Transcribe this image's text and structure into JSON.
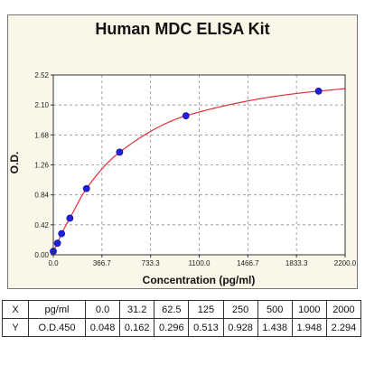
{
  "chart_data": {
    "type": "scatter",
    "title": "Human MDC ELISA Kit",
    "xlabel": "Concentration (pg/ml)",
    "ylabel": "O.D.",
    "xlim": [
      0,
      2200
    ],
    "ylim": [
      0,
      2.52
    ],
    "x_ticks": [
      "0.0",
      "366.7",
      "733.3",
      "1100.0",
      "1466.7",
      "1833.3",
      "2200.0"
    ],
    "y_ticks": [
      "0.00",
      "0.42",
      "0.84",
      "1.26",
      "1.68",
      "2.10",
      "2.52"
    ],
    "x": [
      0,
      31.2,
      62.5,
      125,
      250,
      500,
      1000,
      2000
    ],
    "y": [
      0.048,
      0.162,
      0.296,
      0.513,
      0.928,
      1.438,
      1.948,
      2.294
    ],
    "grid": true,
    "fit_curve": true,
    "colors": {
      "points": "#1f1fe0",
      "curve": "#e0303a",
      "grid": "#909090",
      "background": "#fbf7e8"
    }
  },
  "table": {
    "rows": [
      {
        "label": "X",
        "unit": "pg/ml",
        "values": [
          "0.0",
          "31.2",
          "62.5",
          "125",
          "250",
          "500",
          "1000",
          "2000"
        ]
      },
      {
        "label": "Y",
        "unit": "O.D.450",
        "values": [
          "0.048",
          "0.162",
          "0.296",
          "0.513",
          "0.928",
          "1.438",
          "1.948",
          "2.294"
        ]
      }
    ]
  }
}
